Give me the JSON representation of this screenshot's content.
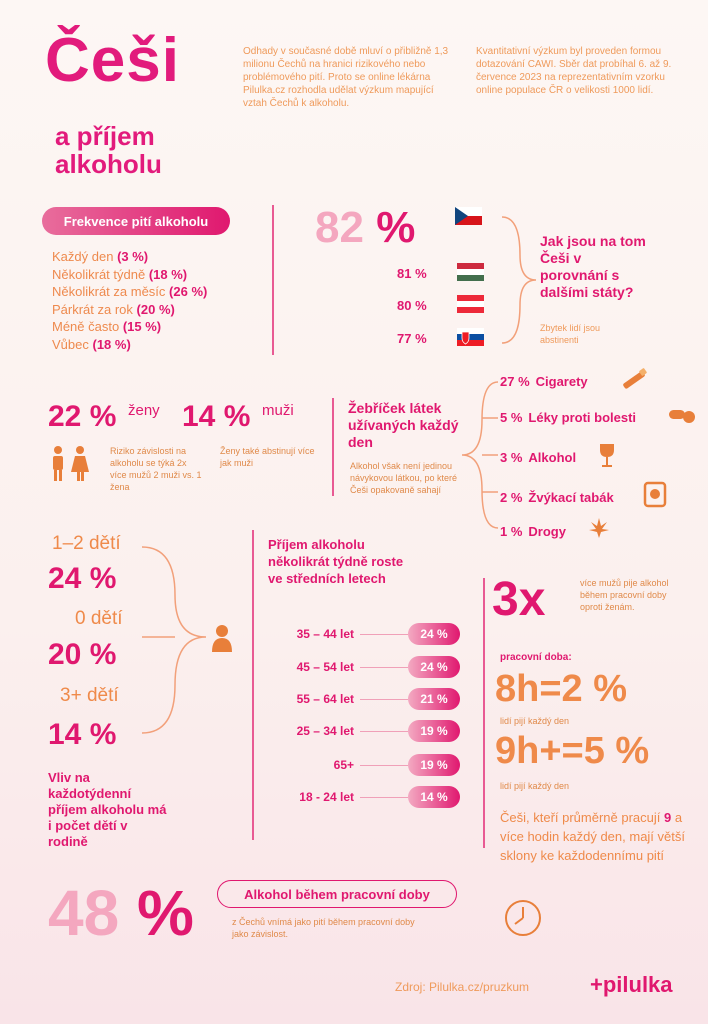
{
  "header": {
    "title": "Češi",
    "subtitle": "a příjem alkoholu",
    "intro_1": "Odhady v současné době mluví o přibližně 1,3 milionu Čechů na hranici rizikového nebo problémového pití. Proto se online lékárna Pilulka.cz rozhodla udělat výzkum mapující vztah Čechů k alkoholu.",
    "intro_2": "Kvantitativní výzkum byl proveden formou dotazování CAWI. Sběr dat probíhal 6. až 9. července 2023 na reprezentativním vzorku online populace ČR o velikosti 1000 lidí."
  },
  "frequency": {
    "title": "Frekvence pití alkoholu",
    "items": [
      {
        "label": "Každý den",
        "value": "(3 %)"
      },
      {
        "label": "Několikrát týdně",
        "value": "(18 %)"
      },
      {
        "label": "Několikrát za měsíc",
        "value": "(26 %)"
      },
      {
        "label": "Párkrát za rok",
        "value": "(20 %)"
      },
      {
        "label": "Méně často",
        "value": "(15 %)"
      },
      {
        "label": "Vůbec",
        "value": "(18 %)"
      }
    ]
  },
  "countries": {
    "main_number": "82",
    "main_sign": "%",
    "others": [
      "81 %",
      "80 %",
      "77 %"
    ],
    "question": "Jak jsou na tom Češi v porovnání s dalšími státy?",
    "note": "Zbytek lidí jsou abstinenti"
  },
  "gender": {
    "women_pct": "22 %",
    "women_label": "ženy",
    "men_pct": "14 %",
    "men_label": "muži",
    "note_1": "Riziko závislosti na alkoholu se týká 2x více mužů 2 muži vs. 1 žena",
    "note_2": "Ženy také abstinují více jak muži"
  },
  "substances": {
    "title": "Žebříček látek užívaných každý den",
    "note": "Alkohol však není jedinou návykovou látkou, po které Češi opakovaně sahají",
    "items": [
      {
        "pct": "27 %",
        "label": "Cigarety",
        "icon": "cigarette-icon"
      },
      {
        "pct": "5 %",
        "label": "Léky proti bolesti",
        "icon": "pills-icon"
      },
      {
        "pct": "3 %",
        "label": "Alkohol",
        "icon": "wine-glass-icon"
      },
      {
        "pct": "2 %",
        "label": "Žvýkací tabák",
        "icon": "tobacco-tin-icon"
      },
      {
        "pct": "1 %",
        "label": "Drogy",
        "icon": "cannabis-leaf-icon"
      }
    ]
  },
  "children": {
    "groups": [
      {
        "label": "1–2 dětí",
        "pct": "24 %"
      },
      {
        "label": "0 dětí",
        "pct": "20 %"
      },
      {
        "label": "3+ dětí",
        "pct": "14 %"
      }
    ],
    "note": "Vliv na každotýdenní příjem alkoholu má i počet dětí v rodině"
  },
  "age": {
    "title": "Příjem alkoholu několikrát týdně roste ve středních letech",
    "rows": [
      {
        "label": "35 – 44 let",
        "pct": "24 %"
      },
      {
        "label": "45 – 54 let",
        "pct": "24 %"
      },
      {
        "label": "55 – 64 let",
        "pct": "21 %"
      },
      {
        "label": "25 – 34 let",
        "pct": "19 %"
      },
      {
        "label": "65+",
        "pct": "19 %"
      },
      {
        "label": "18 - 24 let",
        "pct": "14 %"
      }
    ]
  },
  "work": {
    "multiplier": "3x",
    "multiplier_note": "více mužů pije alkohol během pracovní doby oproti ženám.",
    "hours_label": "pracovní doba:",
    "h8": "8h=2 %",
    "h8_note": "lidí pijí každý den",
    "h9": "9h+=5 %",
    "h9_note": "lidí pijí každý den",
    "summary_a": "Češi, kteří průměrně pracují ",
    "summary_b": "9",
    "summary_c": " a více hodin každý den, mají větší sklony ke každodennímu pití"
  },
  "bottom": {
    "pct_number": "48",
    "pct_sign": "%",
    "pill": "Alkohol během pracovní doby",
    "note": "z Čechů vnímá jako pití během pracovní doby jako závislost.",
    "source": "Zdroj: Pilulka.cz/pruzkum",
    "logo": "+pilulka"
  }
}
